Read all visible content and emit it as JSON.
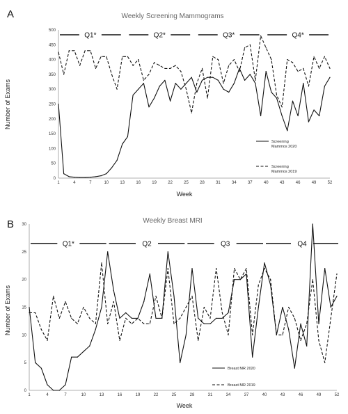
{
  "chart_data": [
    {
      "type": "line",
      "panel": "A",
      "title": "Weekly Screening Mammograms",
      "xlabel": "Week",
      "ylabel": "Number of Exams",
      "xlim": [
        1,
        52
      ],
      "ylim": [
        0,
        500
      ],
      "xticks": [
        1,
        4,
        7,
        10,
        13,
        16,
        19,
        22,
        25,
        28,
        31,
        34,
        37,
        40,
        43,
        46,
        49,
        52
      ],
      "yticks": [
        0,
        50,
        100,
        150,
        200,
        250,
        300,
        350,
        400,
        450,
        500
      ],
      "x": [
        1,
        2,
        3,
        4,
        5,
        6,
        7,
        8,
        9,
        10,
        11,
        12,
        13,
        14,
        15,
        16,
        17,
        18,
        19,
        20,
        21,
        22,
        23,
        24,
        25,
        26,
        27,
        28,
        29,
        30,
        31,
        32,
        33,
        34,
        35,
        36,
        37,
        38,
        39,
        40,
        41,
        42,
        43,
        44,
        45,
        46,
        47,
        48,
        49,
        50,
        51,
        52
      ],
      "series": [
        {
          "name": "Screening Mammos 2020",
          "style": "solid",
          "values": [
            250,
            15,
            5,
            3,
            2,
            2,
            3,
            5,
            8,
            15,
            35,
            60,
            115,
            140,
            280,
            300,
            320,
            240,
            270,
            310,
            330,
            260,
            320,
            300,
            320,
            340,
            290,
            330,
            340,
            340,
            330,
            300,
            290,
            320,
            370,
            330,
            350,
            320,
            210,
            360,
            290,
            270,
            210,
            160,
            260,
            210,
            320,
            190,
            230,
            210,
            310,
            340
          ]
        },
        {
          "name": "Screening Mammos 2019",
          "style": "dashed",
          "values": [
            425,
            350,
            430,
            430,
            380,
            430,
            430,
            370,
            410,
            410,
            350,
            300,
            410,
            410,
            380,
            400,
            330,
            350,
            390,
            380,
            370,
            370,
            380,
            360,
            300,
            220,
            320,
            370,
            270,
            410,
            400,
            320,
            380,
            400,
            360,
            440,
            450,
            330,
            480,
            440,
            400,
            280,
            240,
            400,
            390,
            360,
            370,
            310,
            410,
            370,
            410,
            370
          ]
        }
      ],
      "quarters": [
        {
          "label": "Q1*",
          "start": 1,
          "end": 13
        },
        {
          "label": "Q2*",
          "start": 14,
          "end": 26
        },
        {
          "label": "Q3*",
          "start": 27,
          "end": 39
        },
        {
          "label": "Q4*",
          "start": 40,
          "end": 52
        }
      ],
      "legend": [
        {
          "line1": "Screening",
          "line2": "Mammos 2020",
          "style": "solid"
        },
        {
          "line1": "Screening",
          "line2": "Mammos 2019",
          "style": "dashed"
        }
      ],
      "legend_position": "bottom-right",
      "grid": false
    },
    {
      "type": "line",
      "panel": "B",
      "title": "Weekly Breast MRI",
      "xlabel": "Week",
      "ylabel": "Number of Exams",
      "xlim": [
        1,
        52
      ],
      "ylim": [
        0,
        30
      ],
      "xticks": [
        1,
        4,
        7,
        10,
        13,
        16,
        19,
        22,
        25,
        28,
        31,
        34,
        37,
        40,
        43,
        46,
        49,
        52
      ],
      "yticks": [
        0,
        5,
        10,
        15,
        20,
        25,
        30
      ],
      "x": [
        1,
        2,
        3,
        4,
        5,
        6,
        7,
        8,
        9,
        10,
        11,
        12,
        13,
        14,
        15,
        16,
        17,
        18,
        19,
        20,
        21,
        22,
        23,
        24,
        25,
        26,
        27,
        28,
        29,
        30,
        31,
        32,
        33,
        34,
        35,
        36,
        37,
        38,
        39,
        40,
        41,
        42,
        43,
        44,
        45,
        46,
        47,
        48,
        49,
        50,
        51,
        52
      ],
      "series": [
        {
          "name": "Breast MR 2020",
          "style": "solid",
          "values": [
            15,
            5,
            4,
            1,
            0,
            0,
            1,
            6,
            6,
            7,
            8,
            11,
            15,
            25,
            18,
            13,
            14,
            13,
            13,
            16,
            21,
            13,
            13,
            25,
            17,
            5,
            10,
            22,
            13,
            12,
            12,
            13,
            13,
            14,
            20,
            20,
            21,
            6,
            15,
            23,
            19,
            10,
            15,
            11,
            4,
            12,
            8,
            30,
            12,
            22,
            15,
            17
          ]
        },
        {
          "name": "Breast MR 2019",
          "style": "dashed",
          "values": [
            14,
            14,
            11,
            9,
            17,
            13,
            16,
            13,
            12,
            15,
            13,
            12,
            23,
            12,
            16,
            9,
            13,
            12,
            13,
            12,
            12,
            17,
            13,
            22,
            12,
            13,
            15,
            17,
            9,
            15,
            13,
            22,
            14,
            10,
            22,
            20,
            22,
            10,
            19,
            22,
            20,
            10,
            10,
            15,
            13,
            9,
            12,
            20,
            9,
            5,
            13,
            21
          ]
        }
      ],
      "quarters": [
        {
          "label": "Q1*",
          "start": 1,
          "end": 14
        },
        {
          "label": "Q2",
          "start": 14,
          "end": 27
        },
        {
          "label": "Q3",
          "start": 27,
          "end": 40
        },
        {
          "label": "Q4",
          "start": 40,
          "end": 53
        }
      ],
      "legend": [
        {
          "line1": "Breast MR 2020",
          "line2": "",
          "style": "solid"
        },
        {
          "line1": "Breast MR 2019",
          "line2": "",
          "style": "dashed"
        }
      ],
      "legend_position": "bottom-right",
      "grid": false
    }
  ]
}
